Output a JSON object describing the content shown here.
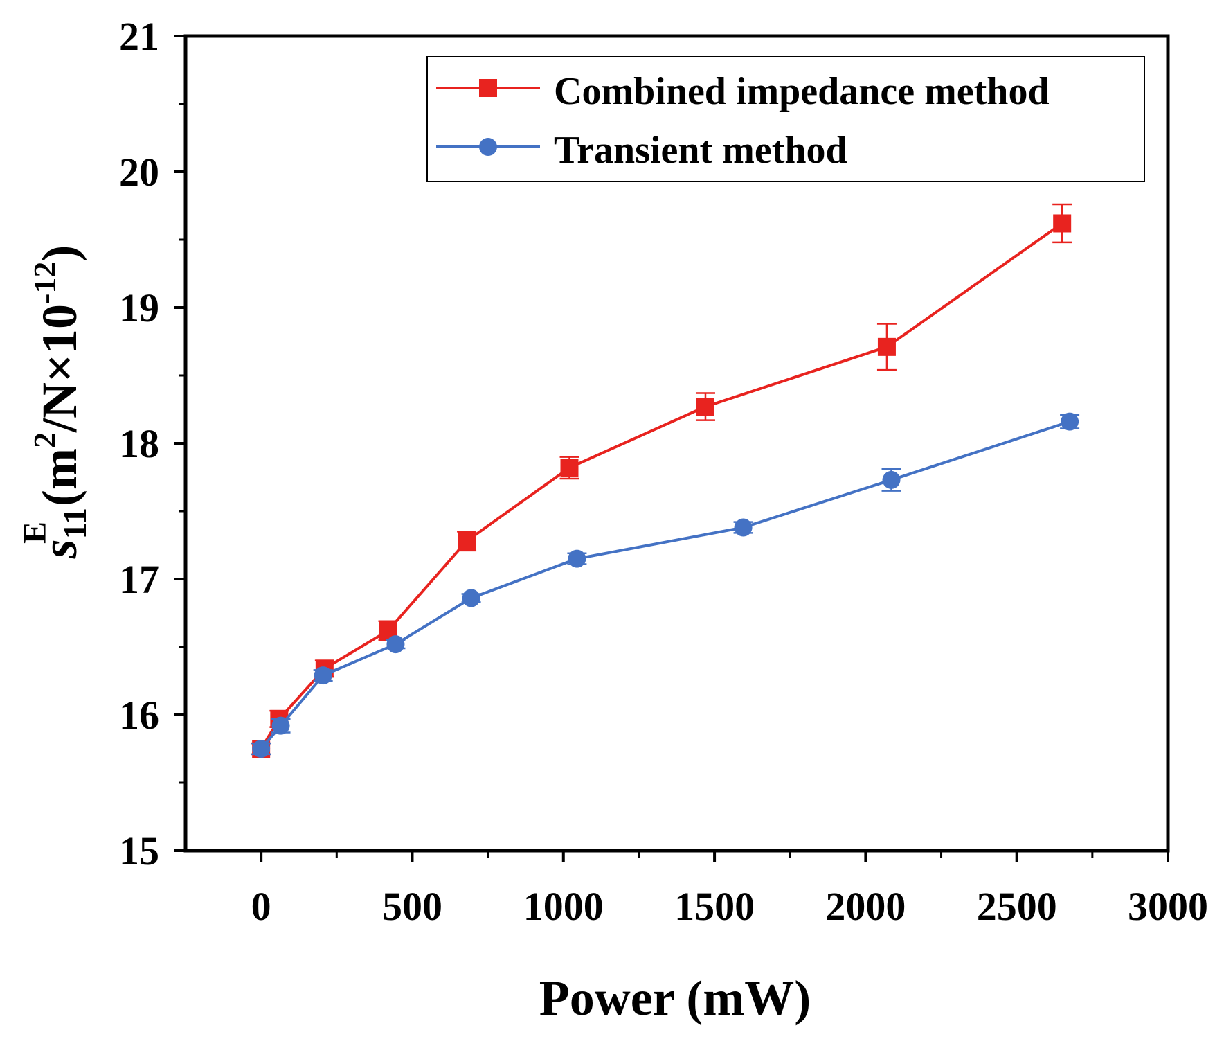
{
  "chart_data": {
    "type": "line",
    "title": "",
    "xlabel": "Power (mW)",
    "ylabel": {
      "symbol": "s",
      "superscript": "E",
      "subscript": "11",
      "units_prefix": "(m",
      "units_exp": "2",
      "units_mid": "/N×10",
      "units_exp2": "-12",
      "units_suffix": ")"
    },
    "xlim": [
      -250,
      3000
    ],
    "ylim": [
      15,
      21
    ],
    "xticks": [
      0,
      500,
      1000,
      1500,
      2000,
      2500,
      3000
    ],
    "xtick_labels": [
      "0",
      "500",
      "1000",
      "1500",
      "2000",
      "2500",
      "3000"
    ],
    "yticks": [
      15,
      16,
      17,
      18,
      19,
      20,
      21
    ],
    "ytick_labels": [
      "15",
      "16",
      "17",
      "18",
      "19",
      "20",
      "21"
    ],
    "legend_position": "top-right",
    "series": [
      {
        "name": "Combined impedance method",
        "color": "#e8231f",
        "marker": "square",
        "x": [
          0,
          60,
          210,
          420,
          680,
          1020,
          1470,
          2070,
          2650
        ],
        "y": [
          15.75,
          15.97,
          16.34,
          16.62,
          17.28,
          17.82,
          18.27,
          18.71,
          19.62
        ],
        "err": [
          0.04,
          0.06,
          0.06,
          0.07,
          0.07,
          0.08,
          0.1,
          0.17,
          0.14
        ]
      },
      {
        "name": "Transient method",
        "color": "#4472c4",
        "marker": "circle",
        "x": [
          0,
          65,
          205,
          445,
          695,
          1045,
          1595,
          2085,
          2675
        ],
        "y": [
          15.75,
          15.92,
          16.29,
          16.52,
          16.86,
          17.15,
          17.38,
          17.73,
          18.16
        ],
        "err": [
          0.04,
          0.05,
          0.04,
          0.03,
          0.03,
          0.04,
          0.04,
          0.08,
          0.05
        ]
      }
    ]
  }
}
